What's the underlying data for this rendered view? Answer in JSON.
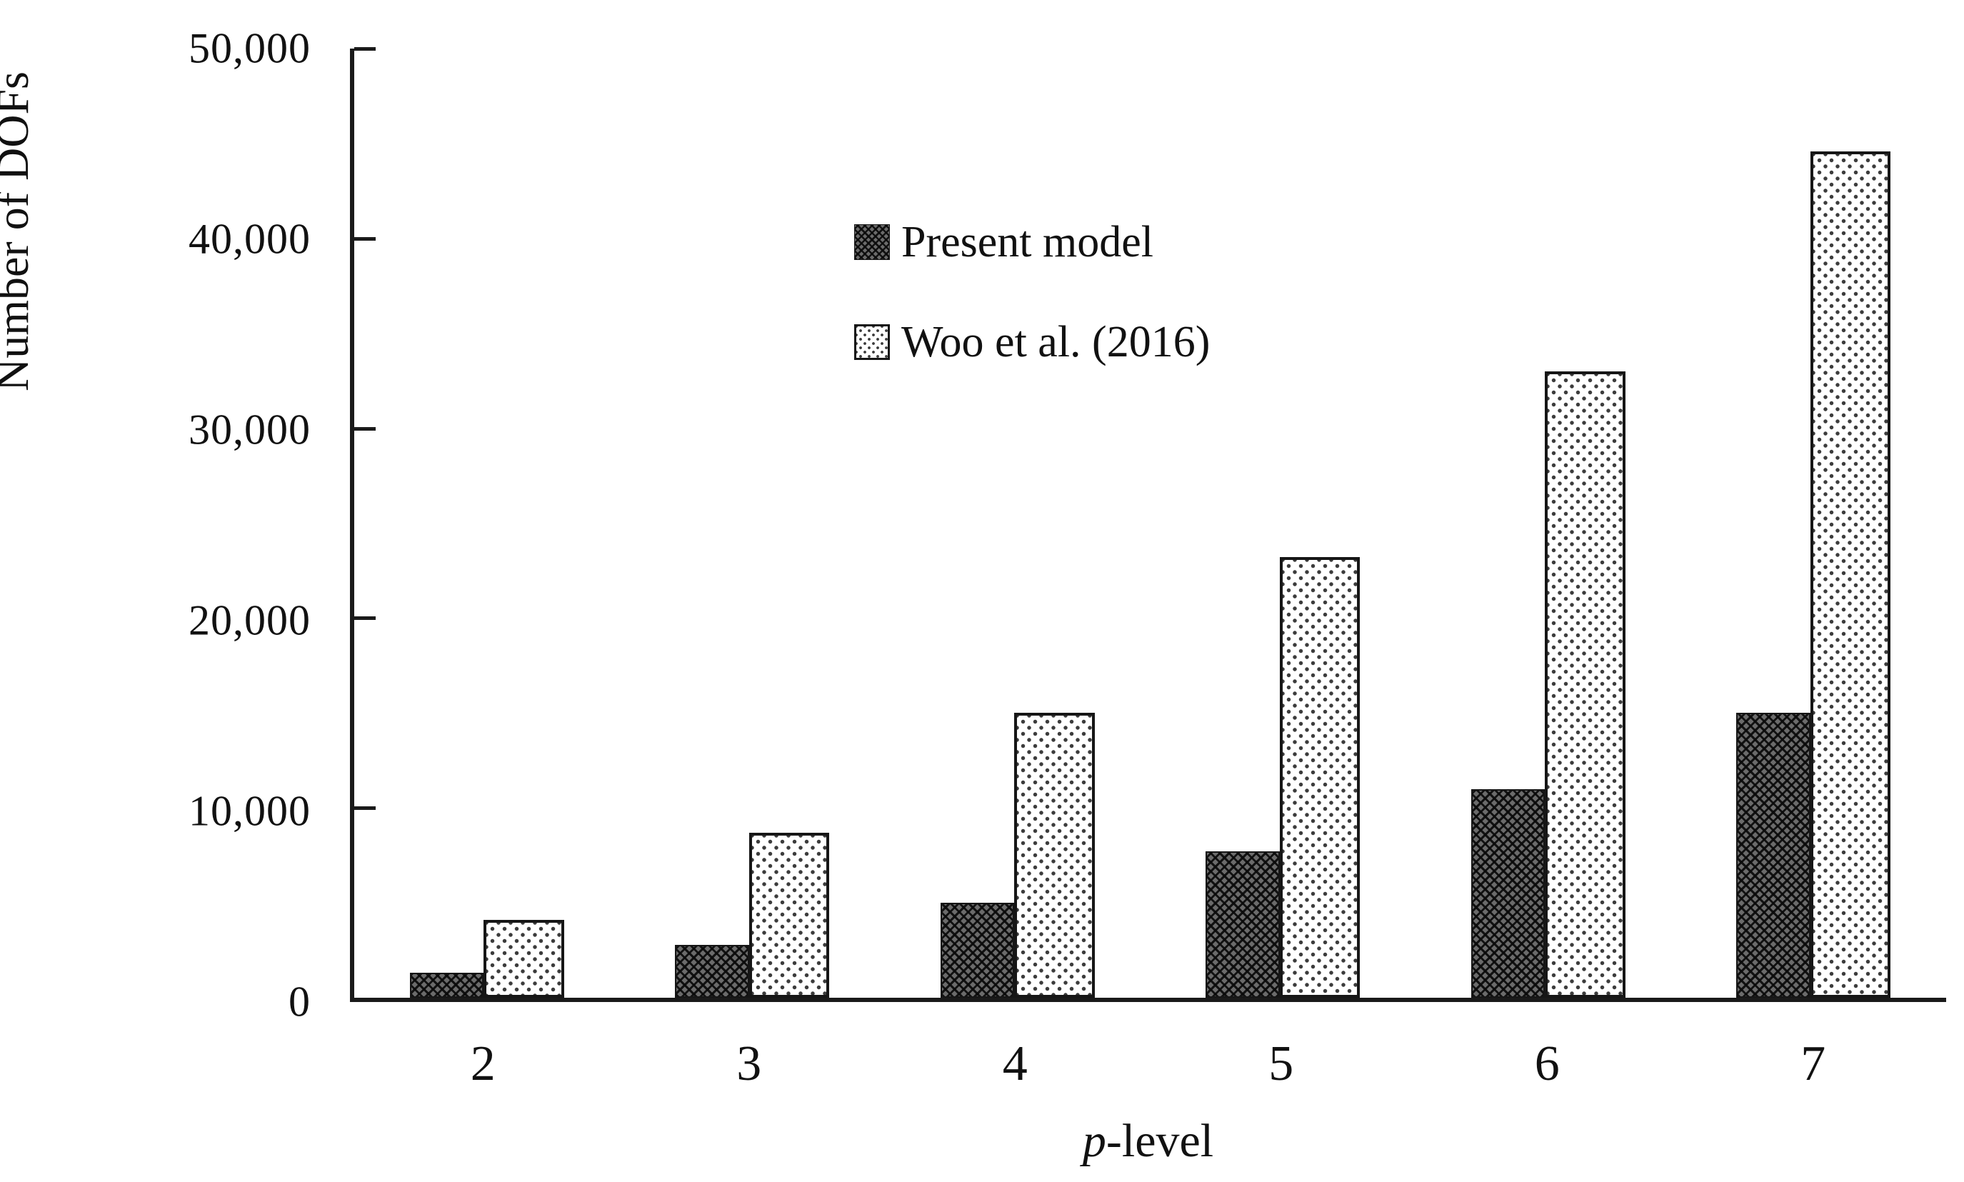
{
  "chart_data": {
    "type": "bar",
    "title": "",
    "categories": [
      "2",
      "3",
      "4",
      "5",
      "6",
      "7"
    ],
    "series": [
      {
        "name": "Present model",
        "pattern": "dark-checker",
        "values": [
          1300,
          2800,
          5000,
          7700,
          11000,
          15000
        ]
      },
      {
        "name": "Woo et al. (2016)",
        "pattern": "light-dots",
        "values": [
          4100,
          8700,
          15000,
          23200,
          33000,
          44600
        ]
      }
    ],
    "xlabel_parts": [
      {
        "text": "p",
        "italic": true
      },
      {
        "text": "-level",
        "italic": false
      }
    ],
    "ylabel": "Number of DOFs",
    "ylim": [
      0,
      50000
    ],
    "yticks": [
      0,
      10000,
      20000,
      30000,
      40000,
      50000
    ],
    "ytick_labels": [
      "0",
      "10,000",
      "20,000",
      "30,000",
      "40,000",
      "50,000"
    ],
    "grid": false,
    "legend_position": "top-left-inside"
  },
  "colors": {
    "axis": "#1a1a1a",
    "bar_dark_base": "#6b6b6b",
    "bar_dark_hatch": "#0a0a0a",
    "bar_light_base": "#ffffff",
    "bar_light_dot": "#3c3c3c",
    "background": "#ffffff",
    "text": "#111111"
  }
}
